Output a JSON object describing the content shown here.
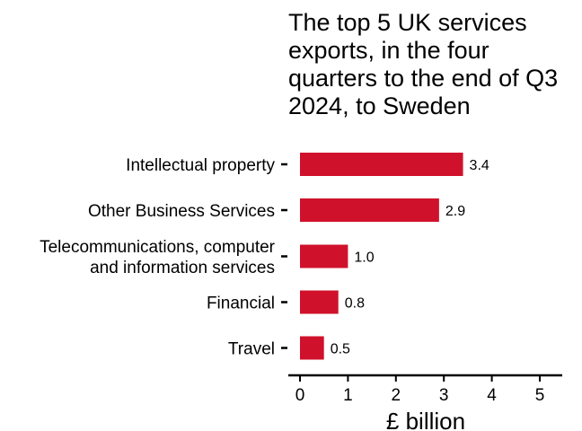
{
  "chart_data": {
    "type": "bar",
    "orientation": "horizontal",
    "title_lines": [
      "The top 5 UK services",
      "exports, in the four",
      "quarters to the end of Q3",
      "2024, to Sweden"
    ],
    "categories": [
      [
        "Intellectual property"
      ],
      [
        "Other Business Services"
      ],
      [
        "Telecommunications, computer",
        "and information services"
      ],
      [
        "Financial"
      ],
      [
        "Travel"
      ]
    ],
    "values": [
      3.4,
      2.9,
      1.0,
      0.8,
      0.5
    ],
    "value_labels": [
      "3.4",
      "2.9",
      "1.0",
      "0.8",
      "0.5"
    ],
    "xlabel": "£ billion",
    "xlim": [
      0,
      5
    ],
    "xticks": [
      "0",
      "1",
      "2",
      "3",
      "4",
      "5"
    ],
    "grid": false,
    "legend": "none",
    "bar_color": "#D0112B"
  }
}
